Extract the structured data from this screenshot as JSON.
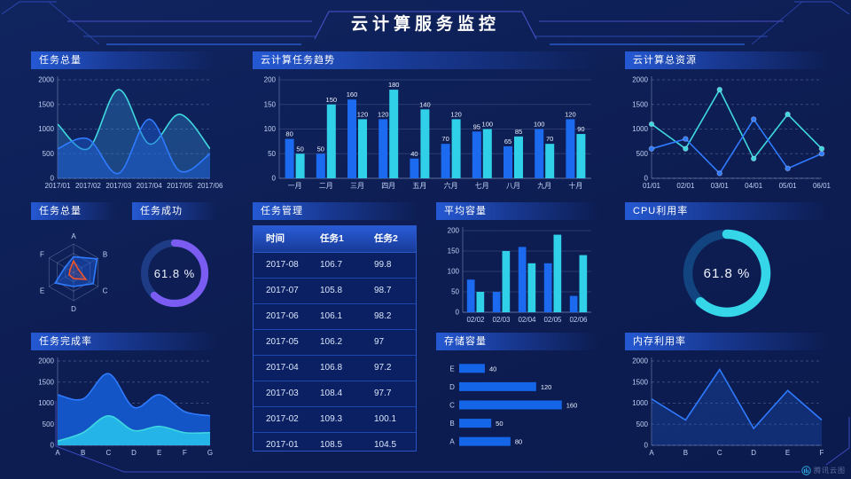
{
  "header": {
    "title": "云计算服务监控"
  },
  "watermark": {
    "label": "腾讯云图",
    "icon": "tencent-cloud-chart-logo"
  },
  "colors": {
    "background": "#0d1e55",
    "panel_header": "#265cda",
    "blue_bar": "#1b6af0",
    "cyan_bar": "#2fd0e8",
    "blue_line": "#2f7bff",
    "cyan_line": "#3fd8e0",
    "purple": "#7b5cf2",
    "orange": "#f4532a",
    "axis_text": "#c3d2f4"
  },
  "panels": {
    "tasksOverview": {
      "title": "任务总量"
    },
    "taskTrend": {
      "title": "云计算任务趋势"
    },
    "totalResources": {
      "title": "云计算总资源"
    },
    "taskRadar": {
      "title": "任务总量"
    },
    "taskSuccess": {
      "title": "任务成功"
    },
    "taskTable": {
      "title": "任务管理"
    },
    "avgCapacity": {
      "title": "平均容量"
    },
    "cpu": {
      "title": "CPU利用率"
    },
    "completion": {
      "title": "任务完成率"
    },
    "storage": {
      "title": "存储容量"
    },
    "memory": {
      "title": "内存利用率"
    }
  },
  "table": {
    "headers": [
      "时间",
      "任务1",
      "任务2"
    ],
    "rows": [
      [
        "2017-08",
        "106.7",
        "99.8"
      ],
      [
        "2017-07",
        "105.8",
        "98.7"
      ],
      [
        "2017-06",
        "106.1",
        "98.2"
      ],
      [
        "2017-05",
        "106.2",
        "97"
      ],
      [
        "2017-04",
        "106.8",
        "97.2"
      ],
      [
        "2017-03",
        "108.4",
        "97.7"
      ],
      [
        "2017-02",
        "109.3",
        "100.1"
      ],
      [
        "2017-01",
        "108.5",
        "104.5"
      ]
    ]
  },
  "chart_data": [
    {
      "id": "tasks-overview",
      "type": "area",
      "title": "任务总量",
      "smooth": true,
      "grid": "dashed",
      "x": [
        "2017/01",
        "2017/02",
        "2017/03",
        "2017/04",
        "2017/05",
        "2017/06"
      ],
      "series": [
        {
          "name": "cyan",
          "values": [
            1100,
            600,
            1800,
            700,
            1300,
            600
          ]
        },
        {
          "name": "blue",
          "values": [
            600,
            800,
            100,
            1200,
            150,
            500
          ]
        }
      ],
      "ylim": [
        0,
        2000
      ],
      "yticks": [
        0,
        500,
        1000,
        1500,
        2000
      ]
    },
    {
      "id": "task-trend",
      "type": "bar",
      "title": "云计算任务趋势",
      "value_labels": true,
      "grid": "solid",
      "categories": [
        "一月",
        "二月",
        "三月",
        "四月",
        "五月",
        "六月",
        "七月",
        "八月",
        "九月",
        "十月"
      ],
      "series": [
        {
          "name": "blue",
          "values": [
            80,
            50,
            160,
            120,
            40,
            70,
            95,
            65,
            100,
            120
          ]
        },
        {
          "name": "cyan",
          "values": [
            50,
            150,
            120,
            180,
            140,
            120,
            100,
            85,
            70,
            90
          ]
        }
      ],
      "ylim": [
        0,
        200
      ],
      "yticks": [
        0,
        50,
        100,
        150,
        200
      ]
    },
    {
      "id": "total-resources",
      "type": "line",
      "title": "云计算总资源",
      "markers": true,
      "grid": "dashed",
      "x": [
        "01/01",
        "02/01",
        "03/01",
        "04/01",
        "05/01",
        "06/01"
      ],
      "series": [
        {
          "name": "cyan",
          "values": [
            1100,
            600,
            1800,
            400,
            1300,
            600
          ]
        },
        {
          "name": "blue",
          "values": [
            600,
            800,
            100,
            1200,
            200,
            500
          ]
        }
      ],
      "ylim": [
        0,
        2000
      ],
      "yticks": [
        0,
        500,
        1000,
        1500,
        2000
      ]
    },
    {
      "id": "task-radar",
      "type": "radar",
      "title": "任务总量",
      "max": 100,
      "axes": [
        "A",
        "B",
        "C",
        "D",
        "E",
        "F"
      ],
      "series": [
        {
          "name": "blue",
          "values": [
            55,
            95,
            80,
            50,
            75,
            35
          ]
        },
        {
          "name": "orange",
          "values": [
            40,
            20,
            50,
            22,
            18,
            15
          ]
        }
      ]
    },
    {
      "id": "task-success",
      "type": "donut",
      "title": "任务成功",
      "value": 61.8,
      "label": "61.8 %",
      "color": "#7b5cf2",
      "track": "#1e3c85"
    },
    {
      "id": "cpu-usage",
      "type": "donut",
      "title": "CPU利用率",
      "value": 61.8,
      "label": "61.8 %",
      "color": "#35d6e8",
      "track": "#12447f"
    },
    {
      "id": "completion-rate",
      "type": "area",
      "title": "任务完成率",
      "smooth": true,
      "grid": "dashed",
      "x": [
        "A",
        "B",
        "C",
        "D",
        "E",
        "F",
        "G"
      ],
      "series": [
        {
          "name": "blue",
          "values": [
            1200,
            1100,
            1700,
            900,
            1200,
            800,
            700
          ],
          "solid": true
        },
        {
          "name": "cyan",
          "values": [
            100,
            300,
            700,
            350,
            450,
            300,
            300
          ],
          "solid": true
        }
      ],
      "ylim": [
        0,
        2000
      ],
      "yticks": [
        0,
        500,
        1000,
        1500,
        2000
      ]
    },
    {
      "id": "avg-capacity",
      "type": "bar",
      "title": "平均容量",
      "value_labels": false,
      "grid": "solid",
      "categories": [
        "02/02",
        "02/03",
        "02/04",
        "02/05",
        "02/06"
      ],
      "series": [
        {
          "name": "blue",
          "values": [
            80,
            50,
            160,
            120,
            40
          ]
        },
        {
          "name": "cyan",
          "values": [
            50,
            150,
            120,
            190,
            140
          ]
        }
      ],
      "ylim": [
        0,
        200
      ],
      "yticks": [
        0,
        50,
        100,
        150,
        200
      ]
    },
    {
      "id": "storage",
      "type": "hbar",
      "title": "存储容量",
      "categories": [
        "E",
        "D",
        "C",
        "B",
        "A"
      ],
      "values": [
        40,
        120,
        160,
        50,
        80
      ],
      "xmax": 170
    },
    {
      "id": "memory-usage",
      "type": "line",
      "title": "内存利用率",
      "area": true,
      "grid": "dashed",
      "x": [
        "A",
        "B",
        "C",
        "D",
        "E",
        "F"
      ],
      "series": [
        {
          "name": "blue",
          "values": [
            1100,
            600,
            1800,
            400,
            1300,
            600
          ]
        }
      ],
      "ylim": [
        0,
        2000
      ],
      "yticks": [
        0,
        500,
        1000,
        1500,
        2000
      ]
    }
  ]
}
